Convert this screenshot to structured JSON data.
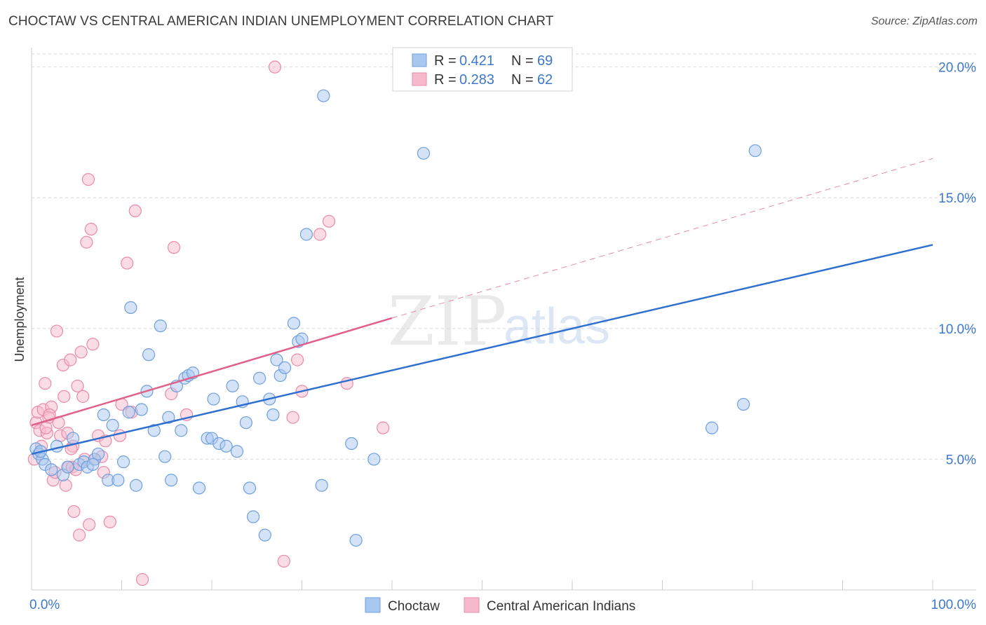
{
  "title": "CHOCTAW VS CENTRAL AMERICAN INDIAN UNEMPLOYMENT CORRELATION CHART",
  "source": "Source: ZipAtlas.com",
  "watermark": {
    "zip": "ZIP",
    "atlas": "atlas"
  },
  "colors": {
    "blue_fill": "#a9c8ef",
    "blue_stroke": "#6f9fdc",
    "blue_line": "#2e6fcf",
    "pink_fill": "#f6b9cb",
    "pink_stroke": "#ea8aa8",
    "pink_line": "#e0608a",
    "grid": "#d8d8d8",
    "tick_text": "#3d78c9"
  },
  "chart_data": {
    "type": "scatter",
    "title": "CHOCTAW VS CENTRAL AMERICAN INDIAN UNEMPLOYMENT CORRELATION CHART",
    "xlabel": "",
    "ylabel": "Unemployment",
    "xlim": [
      0,
      100
    ],
    "ylim": [
      0,
      20.5
    ],
    "x_tick_labels": [
      "0.0%",
      "100.0%"
    ],
    "y_ticks": [
      5,
      10,
      15,
      20
    ],
    "y_tick_labels": [
      "5.0%",
      "10.0%",
      "15.0%",
      "20.0%"
    ],
    "legend": [
      {
        "name": "Choctaw",
        "R_label": "R = ",
        "R": "0.421",
        "N_label": "N = ",
        "N": "69"
      },
      {
        "name": "Central American Indians",
        "R_label": "R = ",
        "R": "0.283",
        "N_label": "N = ",
        "N": "62"
      }
    ],
    "series": [
      {
        "name": "Choctaw",
        "color": "#a9c8ef",
        "trend": {
          "x": [
            0,
            100
          ],
          "y": [
            5.2,
            13.2
          ],
          "style": "solid"
        },
        "points": [
          [
            0.5,
            5.4
          ],
          [
            0.8,
            5.2
          ],
          [
            1.2,
            5.0
          ],
          [
            1.5,
            4.8
          ],
          [
            2.2,
            4.6
          ],
          [
            2.8,
            5.5
          ],
          [
            3.5,
            4.4
          ],
          [
            4,
            4.7
          ],
          [
            4.6,
            5.8
          ],
          [
            5.3,
            4.8
          ],
          [
            5.8,
            4.9
          ],
          [
            6.2,
            4.7
          ],
          [
            7.0,
            5.0
          ],
          [
            7.4,
            5.2
          ],
          [
            8,
            6.7
          ],
          [
            8.5,
            4.2
          ],
          [
            9,
            6.3
          ],
          [
            9.6,
            4.2
          ],
          [
            10.2,
            4.9
          ],
          [
            10.8,
            6.8
          ],
          [
            11,
            10.8
          ],
          [
            11.6,
            4.0
          ],
          [
            12.2,
            6.9
          ],
          [
            12.8,
            7.6
          ],
          [
            13,
            9.0
          ],
          [
            13.6,
            6.1
          ],
          [
            14.3,
            10.1
          ],
          [
            14.8,
            5.1
          ],
          [
            15.2,
            6.6
          ],
          [
            15.5,
            4.2
          ],
          [
            16.1,
            7.8
          ],
          [
            16.6,
            6.1
          ],
          [
            17.0,
            8.1
          ],
          [
            17.4,
            8.2
          ],
          [
            17.9,
            8.3
          ],
          [
            18.6,
            3.9
          ],
          [
            19.5,
            5.8
          ],
          [
            20.0,
            5.8
          ],
          [
            20.8,
            5.6
          ],
          [
            20.2,
            7.3
          ],
          [
            21.6,
            5.5
          ],
          [
            22.3,
            7.8
          ],
          [
            22.8,
            5.3
          ],
          [
            23.4,
            7.2
          ],
          [
            23.8,
            6.4
          ],
          [
            24.2,
            3.9
          ],
          [
            24.6,
            2.8
          ],
          [
            25.3,
            8.1
          ],
          [
            25.9,
            2.1
          ],
          [
            26.4,
            7.3
          ],
          [
            26.8,
            6.7
          ],
          [
            27.2,
            8.8
          ],
          [
            27.6,
            8.2
          ],
          [
            28.1,
            8.5
          ],
          [
            29.1,
            10.2
          ],
          [
            29.6,
            9.5
          ],
          [
            30,
            9.6
          ],
          [
            30.5,
            13.6
          ],
          [
            32.2,
            4.0
          ],
          [
            32.4,
            18.9
          ],
          [
            35.5,
            5.6
          ],
          [
            36.0,
            1.9
          ],
          [
            38.0,
            5.0
          ],
          [
            43.5,
            16.7
          ],
          [
            75.5,
            6.2
          ],
          [
            79.0,
            7.1
          ],
          [
            80.3,
            16.8
          ],
          [
            1.0,
            5.3
          ],
          [
            6.8,
            4.8
          ]
        ]
      },
      {
        "name": "Central American Indians",
        "color": "#f6b9cb",
        "trend": {
          "x": [
            0,
            40
          ],
          "y": [
            6.3,
            10.4
          ],
          "style": "solid",
          "extension": {
            "x": [
              40,
              100
            ],
            "y": [
              10.4,
              16.5
            ],
            "style": "dashed"
          }
        },
        "points": [
          [
            0.3,
            5.0
          ],
          [
            0.5,
            6.4
          ],
          [
            0.7,
            6.8
          ],
          [
            0.9,
            6.1
          ],
          [
            1.1,
            5.5
          ],
          [
            1.3,
            6.9
          ],
          [
            1.5,
            7.9
          ],
          [
            1.7,
            6.0
          ],
          [
            1.9,
            6.6
          ],
          [
            2.2,
            7.0
          ],
          [
            2.4,
            4.2
          ],
          [
            2.6,
            4.5
          ],
          [
            2.8,
            9.9
          ],
          [
            3.0,
            6.4
          ],
          [
            3.2,
            5.9
          ],
          [
            3.5,
            8.6
          ],
          [
            3.6,
            7.4
          ],
          [
            3.8,
            4.0
          ],
          [
            4.0,
            6.0
          ],
          [
            4.1,
            4.7
          ],
          [
            4.3,
            8.8
          ],
          [
            4.5,
            4.7
          ],
          [
            4.6,
            5.5
          ],
          [
            4.7,
            3.0
          ],
          [
            4.9,
            4.6
          ],
          [
            5.1,
            7.8
          ],
          [
            5.3,
            2.1
          ],
          [
            5.5,
            9.1
          ],
          [
            5.7,
            7.4
          ],
          [
            5.9,
            5.0
          ],
          [
            6.1,
            13.3
          ],
          [
            6.3,
            15.7
          ],
          [
            6.4,
            2.5
          ],
          [
            6.6,
            13.8
          ],
          [
            6.8,
            9.4
          ],
          [
            7.0,
            5.0
          ],
          [
            7.4,
            5.9
          ],
          [
            7.8,
            5.1
          ],
          [
            8.0,
            4.5
          ],
          [
            8.2,
            5.7
          ],
          [
            8.7,
            2.6
          ],
          [
            9.8,
            5.9
          ],
          [
            10.0,
            7.1
          ],
          [
            10.6,
            12.5
          ],
          [
            11.1,
            6.8
          ],
          [
            11.5,
            14.5
          ],
          [
            12.3,
            0.4
          ],
          [
            15.5,
            7.5
          ],
          [
            15.8,
            13.1
          ],
          [
            17.2,
            6.7
          ],
          [
            27.0,
            20.0
          ],
          [
            28.0,
            1.1
          ],
          [
            29.0,
            6.6
          ],
          [
            29.5,
            8.8
          ],
          [
            30.0,
            7.6
          ],
          [
            32.0,
            13.6
          ],
          [
            33.0,
            14.1
          ],
          [
            35.0,
            7.9
          ],
          [
            39.0,
            6.2
          ],
          [
            1.6,
            6.2
          ],
          [
            2.0,
            6.7
          ],
          [
            4.4,
            5.4
          ]
        ]
      }
    ]
  }
}
